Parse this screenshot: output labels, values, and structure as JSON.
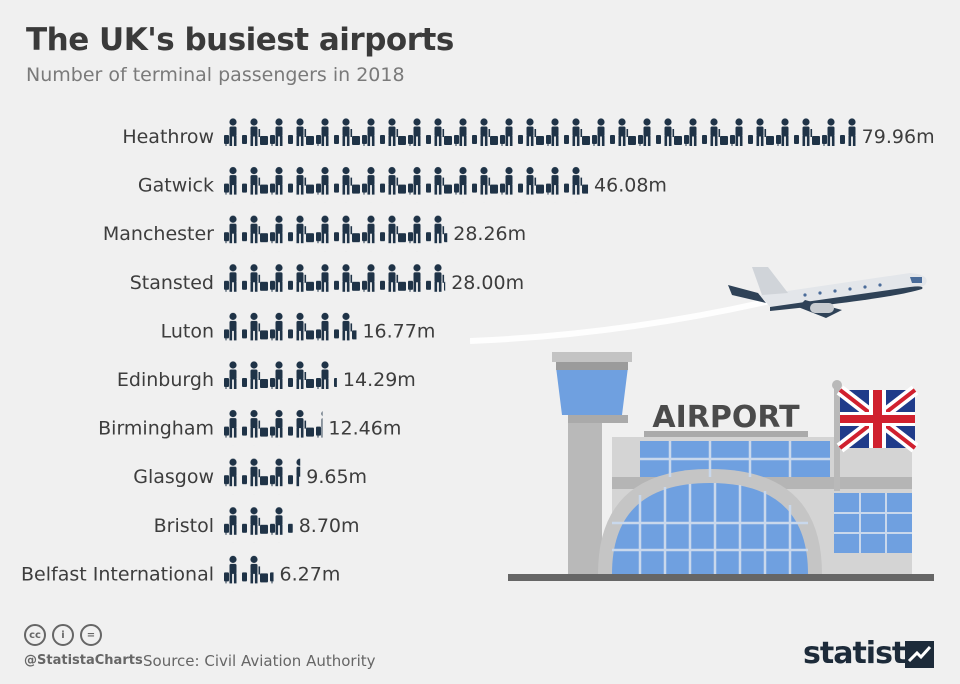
{
  "title": "The UK's busiest airports",
  "subtitle": "Number of terminal passengers in 2018",
  "chart_data": {
    "type": "bar",
    "orientation": "horizontal",
    "title": "The UK's busiest airports",
    "subtitle": "Number of terminal passengers in 2018",
    "categories": [
      "Heathrow",
      "Gatwick",
      "Manchester",
      "Stansted",
      "Luton",
      "Edinburgh",
      "Birmingham",
      "Glasgow",
      "Bristol",
      "Belfast International"
    ],
    "values": [
      79.96,
      46.08,
      28.26,
      28.0,
      16.77,
      14.29,
      12.46,
      9.65,
      8.7,
      6.27
    ],
    "value_labels": [
      "79.96m",
      "46.08m",
      "28.26m",
      "28.00m",
      "16.77m",
      "14.29m",
      "12.46m",
      "9.65m",
      "8.70m",
      "6.27m"
    ],
    "xlim": [
      0,
      80
    ],
    "bar_style": "pictogram of passengers with luggage",
    "bar_color": "#1f3347"
  },
  "illustration": {
    "sign_text": "AIRPORT",
    "flag": "union-jack",
    "icons": [
      "airplane-icon",
      "control-tower-icon",
      "airport-terminal-icon",
      "flag-icon"
    ]
  },
  "footer": {
    "handle": "@StatistaCharts",
    "source": "Source: Civil Aviation Authority",
    "license_icons": [
      "cc",
      "i",
      "="
    ],
    "brand": "statista"
  },
  "colors": {
    "background": "#f0f0f0",
    "bar": "#1f3347",
    "text": "#3d3d3d",
    "glass": "#6fa0e0",
    "building": "#d4d4d4"
  }
}
